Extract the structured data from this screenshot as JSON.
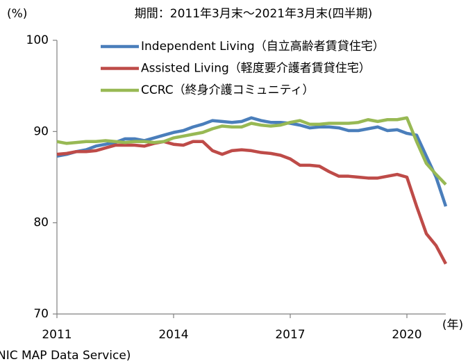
{
  "chart_data": {
    "type": "line",
    "title": "期間：2011年3月末～2021年3月末(四半期)",
    "y_unit": "(%)",
    "x_unit": "(年)",
    "source": "NIC MAP Data Service)",
    "x": [
      2011,
      2011.25,
      2011.5,
      2011.75,
      2012,
      2012.25,
      2012.5,
      2012.75,
      2013,
      2013.25,
      2013.5,
      2013.75,
      2014,
      2014.25,
      2014.5,
      2014.75,
      2015,
      2015.25,
      2015.5,
      2015.75,
      2016,
      2016.25,
      2016.5,
      2016.75,
      2017,
      2017.25,
      2017.5,
      2017.75,
      2018,
      2018.25,
      2018.5,
      2018.75,
      2019,
      2019.25,
      2019.5,
      2019.75,
      2020,
      2020.25,
      2020.5,
      2020.75,
      2021
    ],
    "xlim": [
      2011,
      2021
    ],
    "xticks": [
      2011,
      2014,
      2017,
      2020
    ],
    "ylim": [
      70,
      100
    ],
    "yticks": [
      70,
      80,
      90,
      100
    ],
    "grid": false,
    "series": [
      {
        "name": "Independent Living（自立高齢者賃貸住宅）",
        "color": "#4a7ebb",
        "values": [
          87.3,
          87.5,
          87.8,
          88.0,
          88.4,
          88.6,
          88.8,
          89.2,
          89.2,
          89.0,
          89.3,
          89.6,
          89.9,
          90.1,
          90.5,
          90.8,
          91.2,
          91.1,
          91.0,
          91.1,
          91.5,
          91.2,
          91.0,
          91.0,
          90.9,
          90.7,
          90.4,
          90.5,
          90.5,
          90.4,
          90.1,
          90.1,
          90.3,
          90.5,
          90.1,
          90.2,
          89.8,
          89.6,
          87.3,
          85.0,
          81.8
        ]
      },
      {
        "name": "Assisted Living（軽度要介護者賃貸住宅）",
        "color": "#be4b48",
        "values": [
          87.5,
          87.6,
          87.8,
          87.8,
          87.9,
          88.2,
          88.5,
          88.5,
          88.5,
          88.4,
          88.7,
          88.9,
          88.6,
          88.5,
          88.9,
          88.9,
          87.9,
          87.5,
          87.9,
          88.0,
          87.9,
          87.7,
          87.6,
          87.4,
          87.0,
          86.3,
          86.3,
          86.2,
          85.6,
          85.1,
          85.1,
          85.0,
          84.9,
          84.9,
          85.1,
          85.3,
          85.0,
          81.8,
          78.8,
          77.5,
          75.5
        ]
      },
      {
        "name": "CCRC（終身介護コミュニティ）",
        "color": "#98b954",
        "values": [
          88.9,
          88.7,
          88.8,
          88.9,
          88.9,
          89.0,
          88.9,
          88.8,
          88.9,
          88.9,
          88.8,
          88.9,
          89.3,
          89.5,
          89.7,
          89.9,
          90.3,
          90.6,
          90.5,
          90.5,
          90.9,
          90.7,
          90.6,
          90.7,
          91.0,
          91.2,
          90.8,
          90.8,
          90.9,
          90.9,
          90.9,
          91.0,
          91.3,
          91.1,
          91.3,
          91.3,
          91.5,
          88.9,
          86.5,
          85.3,
          84.2
        ]
      }
    ]
  }
}
